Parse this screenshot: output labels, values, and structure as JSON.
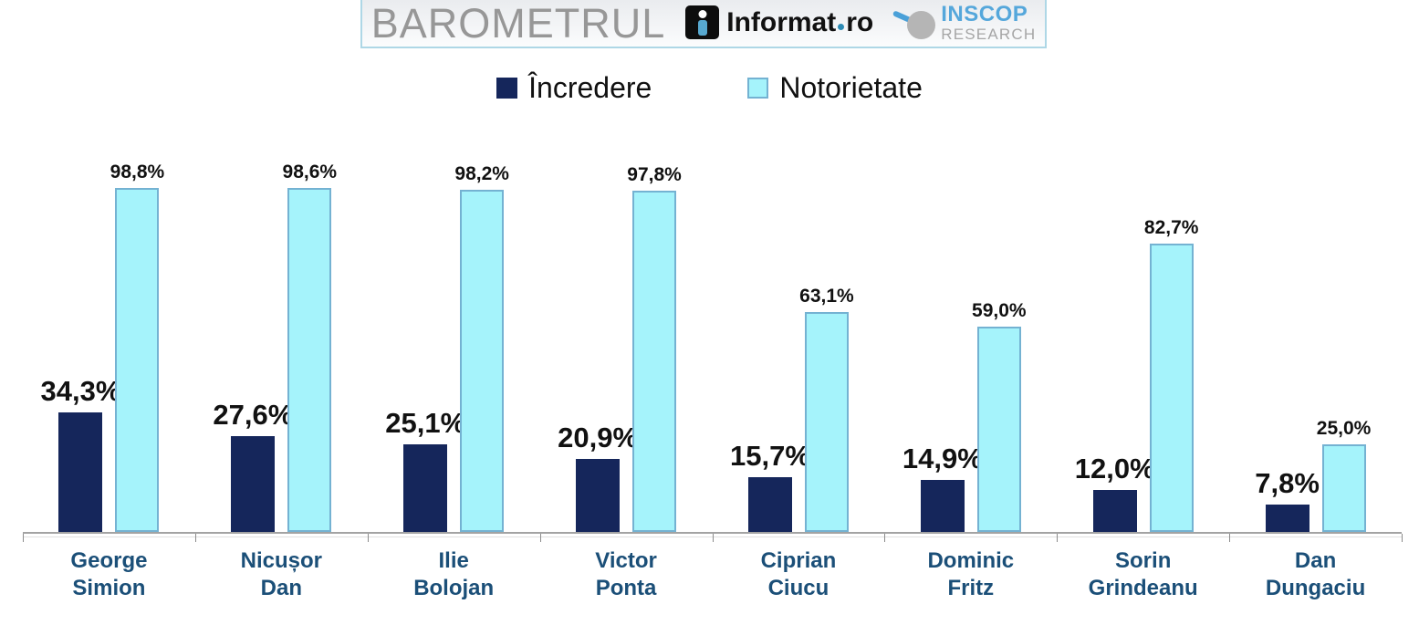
{
  "header": {
    "barometrul_text": "BAROMETRUL",
    "informat_logo": {
      "text_main": "Informat",
      "separator": "·",
      "text_suffix": "ro"
    },
    "inscop_logo": {
      "line1": "INSCOP",
      "line2": "RESEARCH"
    }
  },
  "legend": {
    "items": [
      {
        "label": "Încredere",
        "swatch_color": "#15265b",
        "swatch_border": "#15265b"
      },
      {
        "label": "Notorietate",
        "swatch_color": "#a5f3fb",
        "swatch_border": "#74b2d2"
      }
    ]
  },
  "chart_data": {
    "type": "bar",
    "title": "",
    "categories": [
      "George Simion",
      "Nicușor Dan",
      "Ilie Bolojan",
      "Victor Ponta",
      "Ciprian Ciucu",
      "Dominic Fritz",
      "Sorin Grindeanu",
      "Dan Dungaciu"
    ],
    "category_lines": [
      [
        "George",
        "Simion"
      ],
      [
        "Nicușor",
        "Dan"
      ],
      [
        "Ilie",
        "Bolojan"
      ],
      [
        "Victor",
        "Ponta"
      ],
      [
        "Ciprian",
        "Ciucu"
      ],
      [
        "Dominic",
        "Fritz"
      ],
      [
        "Sorin",
        "Grindeanu"
      ],
      [
        "Dan",
        "Dungaciu"
      ]
    ],
    "series": [
      {
        "name": "Încredere",
        "color": "#15265b",
        "border_color": "#15265b",
        "values": [
          34.3,
          27.6,
          25.1,
          20.9,
          15.7,
          14.9,
          12.0,
          7.8
        ],
        "labels": [
          "34,3%",
          "27,6%",
          "25,1%",
          "20,9%",
          "15,7%",
          "14,9%",
          "12,0%",
          "7,8%"
        ]
      },
      {
        "name": "Notorietate",
        "color": "#a5f3fb",
        "border_color": "#74b2d2",
        "values": [
          98.8,
          98.6,
          98.2,
          97.8,
          63.1,
          59.0,
          82.7,
          25.0
        ],
        "labels": [
          "98,8%",
          "98,6%",
          "98,2%",
          "97,8%",
          "63,1%",
          "59,0%",
          "82,7%",
          "25,0%"
        ]
      }
    ],
    "ylim": [
      0,
      100
    ],
    "grid": false,
    "legend_position": "top",
    "value_label_decimal_separator": ","
  },
  "colors": {
    "axis": "#a3a3a3",
    "tick": "#8c8c8c",
    "category_label": "#1b4f78",
    "value_label": "#111111",
    "header_border": "#aed7e6",
    "header_text": "#979797",
    "inscop_blue": "#55a7db",
    "inscop_gray": "#a6a6a6"
  }
}
